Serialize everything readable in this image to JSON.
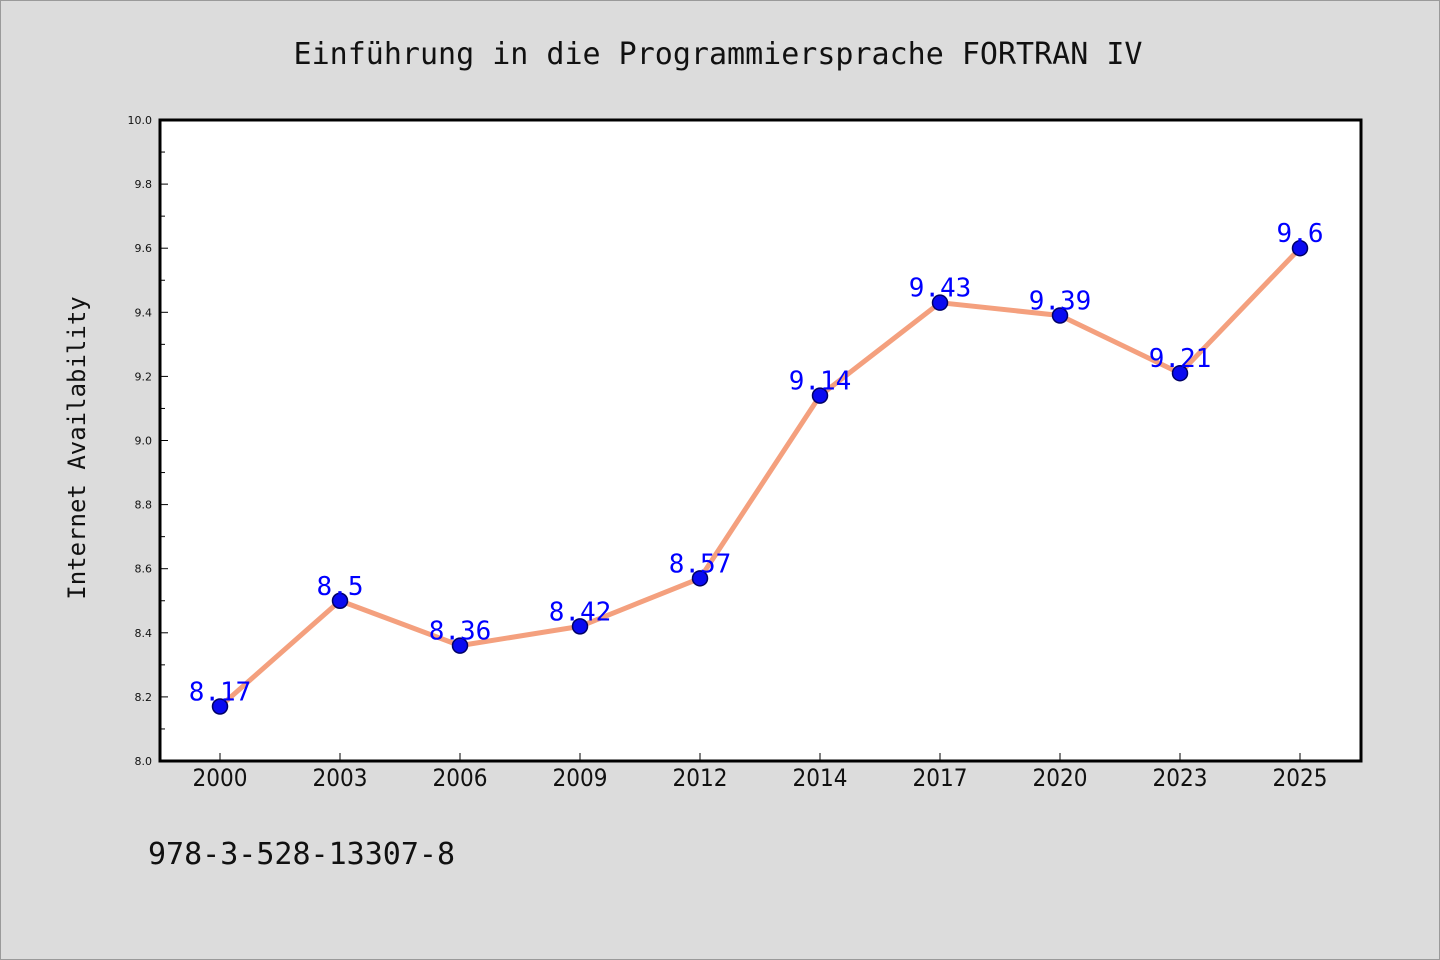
{
  "footer_text": "978-3-528-13307-8",
  "chart_data": {
    "type": "line",
    "title": "Einführung in die Programmiersprache FORTRAN IV",
    "xlabel": "",
    "ylabel": "Internet Availability",
    "categories": [
      "2000",
      "2003",
      "2006",
      "2009",
      "2012",
      "2014",
      "2017",
      "2020",
      "2023",
      "2025"
    ],
    "values": [
      8.17,
      8.5,
      8.36,
      8.42,
      8.57,
      9.14,
      9.43,
      9.39,
      9.21,
      9.6
    ],
    "data_labels": [
      "8.17",
      "8.5",
      "8.36",
      "8.42",
      "8.57",
      "9.14",
      "9.43",
      "9.39",
      "9.21",
      "9.6"
    ],
    "ylim": [
      8.0,
      10.0
    ],
    "yticks": [
      "8.0",
      "8.2",
      "8.4",
      "8.6",
      "8.8",
      "9.0",
      "9.2",
      "9.4",
      "9.6",
      "9.8",
      "10.0"
    ],
    "grid": false,
    "legend": "none",
    "colors": {
      "line": "#f4a07e",
      "marker_fill": "#0a0af0",
      "marker_edge": "#000066",
      "data_label": "#0000ff",
      "plot_background": "#ffffff",
      "page_background": "#dcdcdc"
    }
  }
}
